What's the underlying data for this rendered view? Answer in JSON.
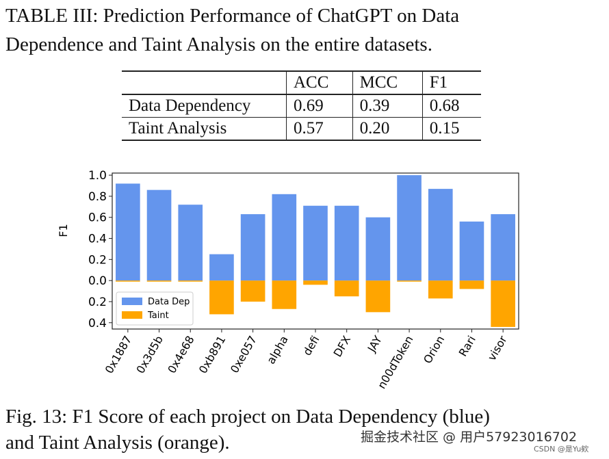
{
  "table_caption_line1": "TABLE III: Prediction Performance of ChatGPT on Data",
  "table_caption_line2": "Dependence and Taint Analysis on the entire datasets.",
  "table": {
    "headers": [
      "",
      "ACC",
      "MCC",
      "F1"
    ],
    "rows": [
      [
        "Data Dependency",
        "0.69",
        "0.39",
        "0.68"
      ],
      [
        "Taint Analysis",
        "0.57",
        "0.20",
        "0.15"
      ]
    ]
  },
  "chart_data": {
    "type": "bar",
    "ylabel": "F1",
    "categories": [
      "0x1887",
      "0x3d5b",
      "0x4e68",
      "0xb891",
      "0xe057",
      "alpha",
      "defi",
      "DFX",
      "JAY",
      "n00dToken",
      "Orion",
      "Rari",
      "visor"
    ],
    "series": [
      {
        "name": "Data Dep",
        "color": "#6495ED",
        "values": [
          0.92,
          0.86,
          0.72,
          0.25,
          0.63,
          0.82,
          0.71,
          0.71,
          0.6,
          1.0,
          0.87,
          0.56,
          0.63
        ]
      },
      {
        "name": "Taint",
        "color": "#FFA500",
        "values": [
          -0.01,
          -0.01,
          -0.01,
          -0.32,
          -0.2,
          -0.27,
          -0.04,
          -0.15,
          -0.3,
          -0.01,
          -0.17,
          -0.08,
          -0.44
        ]
      }
    ],
    "yticks": [
      1.0,
      0.8,
      0.6,
      0.4,
      0.2,
      0.0,
      -0.2,
      -0.4
    ],
    "ytick_labels": [
      "1.0",
      "0.8",
      "0.6",
      "0.4",
      "0.2",
      "0.0",
      "0.2",
      "0.4"
    ],
    "ylim": [
      -0.46,
      1.02
    ],
    "grid": false,
    "legend_position": "lower-left"
  },
  "figure_caption_line1": "Fig. 13: F1 Score of each project on Data Dependency (blue)",
  "figure_caption_line2": "and Taint Analysis (orange).",
  "watermark_main": "掘金技术社区 @ 用户57923016702",
  "watermark_small": "CSDN @是Yu欸"
}
